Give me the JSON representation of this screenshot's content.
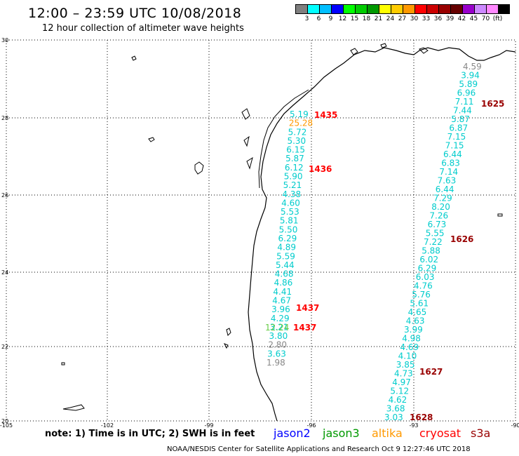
{
  "header": {
    "title": "12:00 – 23:59 UTC 10/08/2018",
    "subtitle": "12 hour collection of altimeter wave heights"
  },
  "scale": {
    "colors": [
      "#7f7f7f",
      "#00ffff",
      "#00bfff",
      "#0000ff",
      "#00ff00",
      "#00cc00",
      "#009900",
      "#ffff00",
      "#ffcc00",
      "#ff9900",
      "#ff0000",
      "#cc0000",
      "#990000",
      "#660000",
      "#9900cc",
      "#cc88ff",
      "#ff88ff",
      "#000000"
    ],
    "labels": [
      "3",
      "6",
      "9",
      "12",
      "15",
      "18",
      "21",
      "24",
      "27",
      "30",
      "33",
      "36",
      "39",
      "42",
      "45",
      "70",
      "(ft)"
    ]
  },
  "axes": {
    "x_ticks": [
      "-105",
      "-102",
      "-99",
      "-96",
      "-93",
      "-90"
    ],
    "y_ticks": [
      "30",
      "28",
      "26",
      "24",
      "22",
      "20"
    ]
  },
  "tracks": {
    "west": [
      "5.19",
      "25.28",
      "5.72",
      "5.30",
      "6.15",
      "5.87",
      "6.12",
      "5.90",
      "5.21",
      "4.38",
      "4.60",
      "5.53",
      "5.81",
      "5.50",
      "6.29",
      "4.89",
      "5.59",
      "5.44",
      "4.68",
      "4.86",
      "4.41",
      "4.67",
      "3.96",
      "4.29",
      "3.21",
      "3.80",
      "2.80",
      "3.63",
      "1.98"
    ],
    "west_green": "12.24",
    "east": [
      "4.59",
      "3.94",
      "5.89",
      "6.96",
      "7.11",
      "7.44",
      "5.87",
      "6.87",
      "7.15",
      "7.15",
      "6.44",
      "6.83",
      "7.14",
      "7.63",
      "6.44",
      "7.29",
      "8.20",
      "7.26",
      "6.73",
      "5.55",
      "7.22",
      "5.88",
      "6.02",
      "6.29",
      "6.03",
      "4.76",
      "5.76",
      "5.61",
      "4.65",
      "4.63",
      "3.99",
      "4.98",
      "4.69",
      "4.10",
      "3.85",
      "4.73",
      "4.97",
      "5.12",
      "4.62",
      "3.68",
      "3.03"
    ]
  },
  "passes": {
    "p1435": "1435",
    "p1436": "1436",
    "p1437a": "1437",
    "p1437b": "1437",
    "p1625": "1625",
    "p1626": "1626",
    "p1627": "1627",
    "p1628": "1628"
  },
  "footer": {
    "note": "note:  1) Time is in UTC;  2) SWH is in feet",
    "legend": [
      {
        "label": "jason2",
        "color": "#0000ff"
      },
      {
        "label": "jason3",
        "color": "#009900"
      },
      {
        "label": "altika",
        "color": "#ff9900"
      },
      {
        "label": "cryosat",
        "color": "#ff0000"
      },
      {
        "label": "s3a",
        "color": "#990000"
      }
    ],
    "credit": "NOAA/NESDIS Center for Satellite Applications and Research    Oct  9 12:27:46 UTC 2018"
  }
}
